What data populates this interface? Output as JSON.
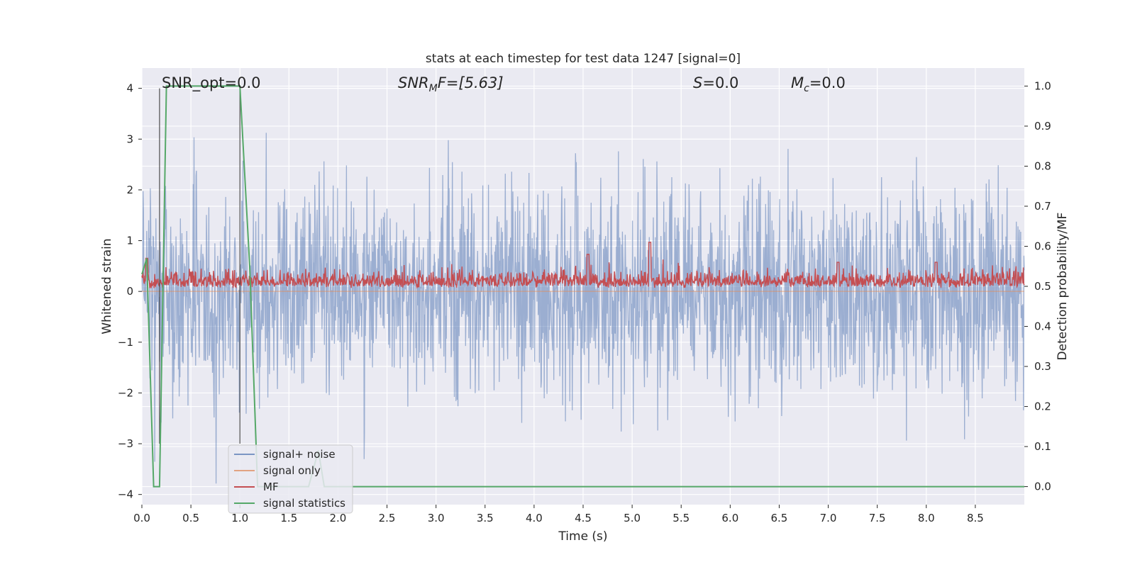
{
  "chart_data": {
    "type": "line",
    "title": "stats at each timestep for test data 1247 [signal=0]",
    "xlabel": "Time (s)",
    "ylabel_left": "Whitened strain",
    "ylabel_right": "Detection probability/MF",
    "xlim": [
      0.0,
      9.0
    ],
    "ylim_left": [
      -4.2,
      4.4
    ],
    "ylim_right": [
      -0.045,
      1.045
    ],
    "x_ticks": [
      0.0,
      0.5,
      1.0,
      1.5,
      2.0,
      2.5,
      3.0,
      3.5,
      4.0,
      4.5,
      5.0,
      5.5,
      6.0,
      6.5,
      7.0,
      7.5,
      8.0,
      8.5
    ],
    "x_tick_labels": [
      "0.0",
      "0.5",
      "1.0",
      "1.5",
      "2.0",
      "2.5",
      "3.0",
      "3.5",
      "4.0",
      "4.5",
      "5.0",
      "5.5",
      "6.0",
      "6.5",
      "7.0",
      "7.5",
      "8.0",
      "8.5"
    ],
    "y_left_ticks": [
      4,
      3,
      2,
      1,
      0,
      -1,
      -2,
      -3,
      -4
    ],
    "y_left_tick_labels": [
      "4",
      "3",
      "2",
      "1",
      "0",
      "−1",
      "−2",
      "−3",
      "−4"
    ],
    "y_right_ticks": [
      1.0,
      0.9,
      0.8,
      0.7,
      0.6,
      0.5,
      0.4,
      0.3,
      0.2,
      0.1,
      0.0
    ],
    "y_right_tick_labels": [
      "1.0",
      "0.9",
      "0.8",
      "0.7",
      "0.6",
      "0.5",
      "0.4",
      "0.3",
      "0.2",
      "0.1",
      "0.0"
    ],
    "grid": true,
    "background": "#eaeaf2",
    "annotations": {
      "snr_opt": "SNR_opt=0.0",
      "snr_mf_main": "SNR",
      "snr_mf_sub": "M",
      "snr_mf_rest": "F=[5.63]",
      "s": "S",
      "s_rest": "=0.0",
      "mc_main": "M",
      "mc_sub": "c",
      "mc_rest": "=0.0"
    },
    "vertical_markers_x": [
      0.18,
      1.0
    ],
    "series": [
      {
        "name": "signal+ noise",
        "axis": "left",
        "color": "#4c72b0",
        "opacity": 0.5,
        "noise_std": 1.0,
        "range": [
          -3.8,
          4.0
        ],
        "samples": 2200
      },
      {
        "name": "signal only",
        "axis": "left",
        "color": "#dd8452",
        "opacity": 0.5,
        "x": [
          0.0,
          9.0
        ],
        "y": [
          0.0,
          0.0
        ]
      },
      {
        "name": "MF",
        "axis": "right",
        "color": "#c44e52",
        "baseline": 0.5,
        "peaks": [
          {
            "x": 0.05,
            "y": 0.57
          },
          {
            "x": 4.55,
            "y": 0.58
          },
          {
            "x": 5.18,
            "y": 0.61
          },
          {
            "x": 7.1,
            "y": 0.56
          },
          {
            "x": 8.1,
            "y": 0.56
          }
        ]
      },
      {
        "name": "signal statistics",
        "axis": "right",
        "color": "#55a868",
        "x": [
          0.0,
          0.05,
          0.12,
          0.18,
          0.25,
          1.0,
          1.1,
          1.18,
          1.7,
          1.8,
          1.86,
          9.0
        ],
        "y": [
          0.53,
          0.57,
          0.0,
          0.0,
          1.0,
          1.0,
          0.55,
          0.0,
          0.0,
          0.09,
          0.0,
          0.0
        ]
      }
    ],
    "legend": {
      "placement": "lower-left",
      "entries": [
        "signal+ noise",
        "signal only",
        "MF",
        "signal statistics"
      ]
    }
  }
}
